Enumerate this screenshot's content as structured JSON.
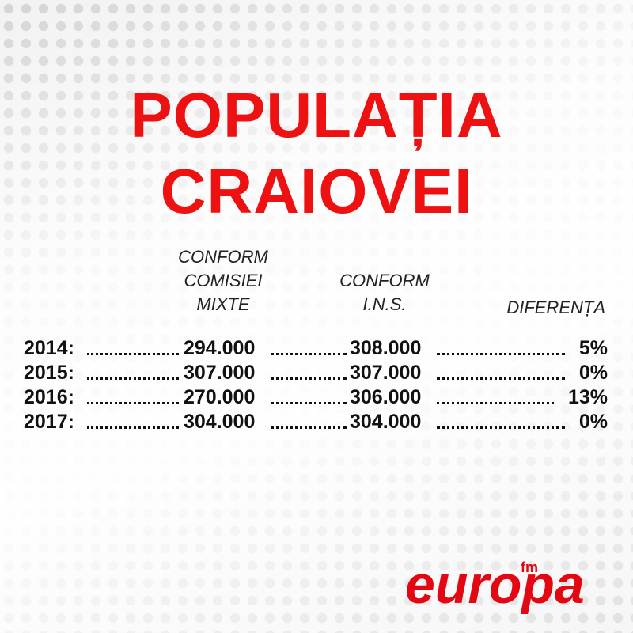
{
  "title": [
    "POPULAȚIA",
    "CRAIOVEI"
  ],
  "table": {
    "columns": [
      [
        "CONFORM",
        "COMISIEI",
        "MIXTE"
      ],
      [
        "CONFORM",
        "I.N.S."
      ],
      [
        "DIFERENȚA"
      ]
    ],
    "rows": [
      [
        "2014:",
        "294.000",
        "308.000",
        "5%"
      ],
      [
        "2015:",
        "307.000",
        "307.000",
        "0%"
      ],
      [
        "2016:",
        "270.000",
        "306.000",
        "13%"
      ],
      [
        "2017:",
        "304.000",
        "304.000",
        "0%"
      ]
    ]
  },
  "logo": [
    "europa",
    "fm"
  ]
}
